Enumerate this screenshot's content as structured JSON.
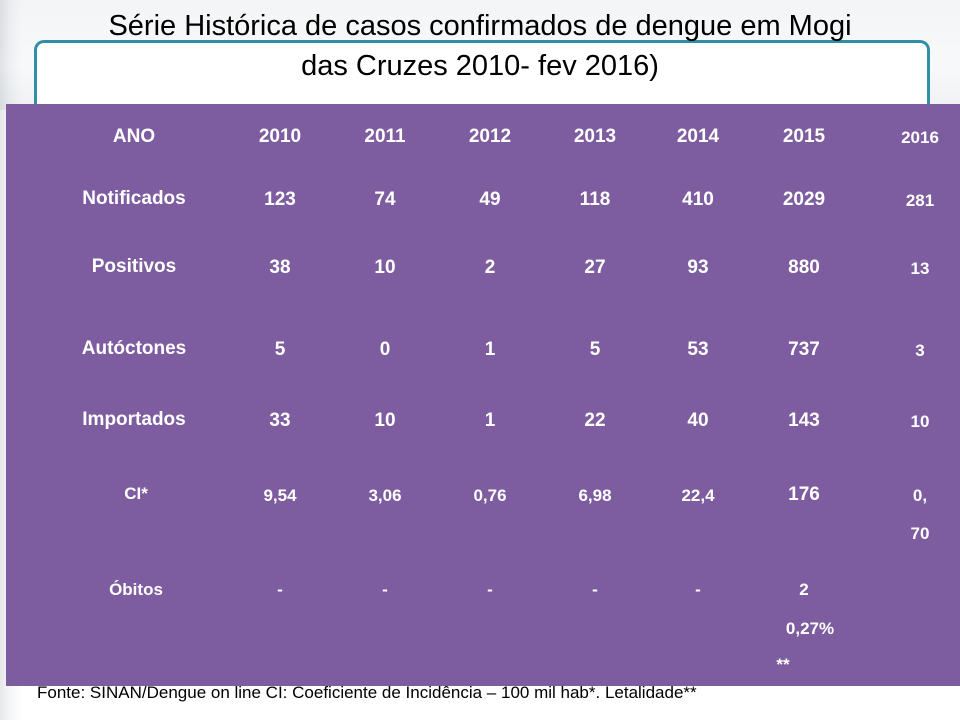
{
  "title_line1": "Série Histórica de casos confirmados de dengue em Mogi",
  "title_line2": "das Cruzes 2010- fev 2016)",
  "table": {
    "header_label": "ANO",
    "years": [
      "2010",
      "2011",
      "2012",
      "2013",
      "2014",
      "2015",
      "2016"
    ],
    "rows": [
      {
        "label": "Notificados",
        "values": [
          "123",
          "74",
          "49",
          "118",
          "410",
          "2029",
          "281"
        ]
      },
      {
        "label": "Positivos",
        "values": [
          "38",
          "10",
          "2",
          "27",
          "93",
          "880",
          "13"
        ]
      },
      {
        "label": "Autóctones",
        "values": [
          "5",
          "0",
          "1",
          "5",
          "53",
          "737",
          "3"
        ]
      },
      {
        "label": "Importados",
        "values": [
          "33",
          "10",
          "1",
          "22",
          "40",
          "143",
          "10"
        ]
      },
      {
        "label": "CI*",
        "values": [
          "9,54",
          "3,06",
          "0,76",
          "6,98",
          "22,4",
          "176",
          "0,"
        ],
        "extra_2016": "70"
      },
      {
        "label": "Óbitos",
        "values": [
          "-",
          "-",
          "-",
          "-",
          "-",
          "2",
          ""
        ],
        "extra_2015": "0,27%",
        "extra_2015_b": "**"
      }
    ]
  },
  "footer": "Fonte: SINAN/Dengue on line CI: Coeficiente de Incidência – 100 mil hab*. Letalidade**"
}
